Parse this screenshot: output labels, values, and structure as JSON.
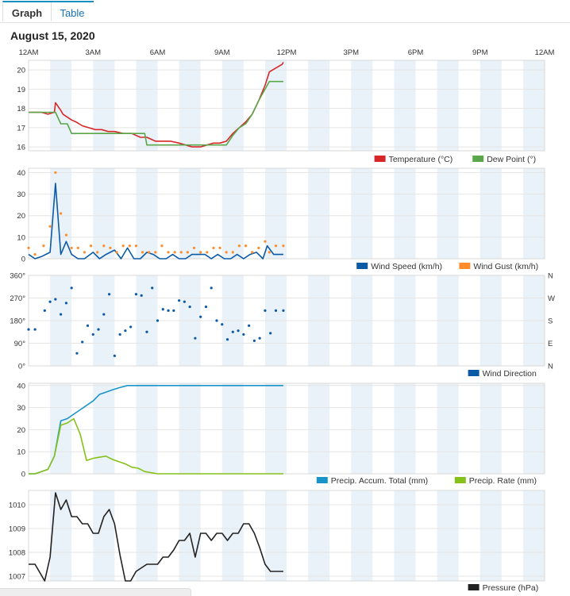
{
  "tabs": {
    "graph": "Graph",
    "table": "Table"
  },
  "page": {
    "date": "August 15, 2020"
  },
  "colors": {
    "temperature": "#d62728",
    "dew_point": "#5aa64a",
    "wind_speed": "#0b5aa6",
    "wind_gust": "#ff8c2a",
    "wind_direction": "#0b5aa6",
    "precip_total": "#1a94c8",
    "precip_rate": "#86c11a",
    "pressure": "#222222",
    "band": "#eaf2f9"
  },
  "chart_data": {
    "type": "line",
    "x_axis": {
      "unit": "hours since midnight",
      "range": [
        0,
        24
      ],
      "tick_hours": [
        0,
        3,
        6,
        9,
        12,
        15,
        18,
        21,
        24
      ],
      "tick_labels": [
        "12AM",
        "3AM",
        "6AM",
        "9AM",
        "12PM",
        "3PM",
        "6PM",
        "9PM",
        "12AM"
      ]
    },
    "panels": [
      {
        "id": "temp",
        "ylim": [
          15.8,
          20.5
        ],
        "yticks": [
          16,
          17,
          18,
          19,
          20
        ],
        "ytick_labels": [
          "16",
          "17",
          "18",
          "19",
          "20"
        ],
        "legend": [
          {
            "name": "Temperature (°C)",
            "color": "#d62728"
          },
          {
            "name": "Dew Point (°)",
            "color": "#5aa64a"
          }
        ],
        "series": [
          {
            "name": "Temperature (°C)",
            "style": "line",
            "color": "#d62728",
            "x": [
              0,
              0.6,
              0.9,
              1.2,
              1.25,
              1.5,
              1.6,
              2.0,
              2.2,
              2.5,
              2.8,
              3.1,
              3.4,
              3.7,
              4.0,
              4.4,
              4.8,
              5.2,
              5.5,
              5.9,
              6.3,
              6.6,
              7.0,
              7.3,
              7.6,
              8.0,
              8.3,
              8.6,
              8.9,
              9.2,
              9.5,
              9.8,
              10.1,
              10.4,
              10.7,
              11.0,
              11.2,
              11.5,
              11.8,
              11.85
            ],
            "y": [
              17.8,
              17.8,
              17.7,
              17.8,
              18.3,
              17.9,
              17.7,
              17.4,
              17.3,
              17.1,
              17.0,
              16.9,
              16.9,
              16.8,
              16.8,
              16.7,
              16.7,
              16.5,
              16.5,
              16.3,
              16.3,
              16.3,
              16.2,
              16.1,
              16.0,
              16.0,
              16.1,
              16.2,
              16.2,
              16.3,
              16.7,
              17.0,
              17.3,
              17.7,
              18.4,
              19.2,
              19.9,
              20.1,
              20.3,
              20.4
            ]
          },
          {
            "name": "Dew Point (°)",
            "style": "line",
            "color": "#5aa64a",
            "x": [
              0,
              1.2,
              1.25,
              1.5,
              1.8,
              2.0,
              3.0,
              4.0,
              5.0,
              5.4,
              5.5,
              6.5,
              7.5,
              8.0,
              9.0,
              9.2,
              9.5,
              9.8,
              10.1,
              10.4,
              10.7,
              11.0,
              11.2,
              11.85
            ],
            "y": [
              17.8,
              17.8,
              17.8,
              17.2,
              17.2,
              16.7,
              16.7,
              16.7,
              16.7,
              16.7,
              16.1,
              16.1,
              16.1,
              16.1,
              16.1,
              16.1,
              16.6,
              17.0,
              17.2,
              17.7,
              18.4,
              19.0,
              19.4,
              19.4
            ]
          }
        ]
      },
      {
        "id": "wind",
        "ylim": [
          0,
          42
        ],
        "yticks": [
          0,
          10,
          20,
          30,
          40
        ],
        "ytick_labels": [
          "0",
          "10",
          "20",
          "30",
          "40"
        ],
        "legend": [
          {
            "name": "Wind Speed (km/h)",
            "color": "#0b5aa6"
          },
          {
            "name": "Wind Gust (km/h)",
            "color": "#ff8c2a"
          }
        ],
        "series": [
          {
            "name": "Wind Speed (km/h)",
            "style": "line",
            "color": "#0b5aa6",
            "x": [
              0,
              0.3,
              0.6,
              1.0,
              1.25,
              1.5,
              1.75,
              2.0,
              2.3,
              2.6,
              3.0,
              3.3,
              3.6,
              4.0,
              4.3,
              4.6,
              4.9,
              5.2,
              5.5,
              5.8,
              6.1,
              6.4,
              6.7,
              7.0,
              7.3,
              7.6,
              7.9,
              8.2,
              8.5,
              8.8,
              9.1,
              9.4,
              9.7,
              10.0,
              10.3,
              10.6,
              10.9,
              11.1,
              11.4,
              11.85
            ],
            "y": [
              2,
              0,
              1,
              3,
              35,
              2,
              8,
              2,
              0,
              0,
              3,
              0,
              2,
              4,
              0,
              5,
              0,
              0,
              3,
              2,
              0,
              0,
              2,
              0,
              0,
              2,
              2,
              2,
              0,
              2,
              0,
              0,
              2,
              0,
              2,
              3,
              0,
              6,
              2,
              2
            ]
          },
          {
            "name": "Wind Gust (km/h)",
            "style": "points",
            "color": "#ff8c2a",
            "x": [
              0,
              0.3,
              0.7,
              1.0,
              1.25,
              1.5,
              1.75,
              2.0,
              2.3,
              2.6,
              2.9,
              3.2,
              3.5,
              3.8,
              4.1,
              4.4,
              4.7,
              5.0,
              5.3,
              5.6,
              5.9,
              6.2,
              6.5,
              6.8,
              7.1,
              7.4,
              7.7,
              8.0,
              8.3,
              8.6,
              8.9,
              9.2,
              9.5,
              9.8,
              10.1,
              10.4,
              10.7,
              11.0,
              11.2,
              11.5,
              11.85
            ],
            "y": [
              5,
              2,
              6,
              15,
              40,
              21,
              11,
              5,
              5,
              3,
              6,
              3,
              6,
              5,
              3,
              6,
              6,
              6,
              3,
              3,
              3,
              6,
              3,
              3,
              3,
              3,
              5,
              3,
              3,
              5,
              5,
              3,
              3,
              6,
              6,
              3,
              5,
              8,
              3,
              6,
              6
            ]
          }
        ]
      },
      {
        "id": "dir",
        "ylim": [
          0,
          360
        ],
        "yticks": [
          0,
          90,
          180,
          270,
          360
        ],
        "ytick_labels": [
          "0°",
          "90°",
          "180°",
          "270°",
          "360°"
        ],
        "right_labels": [
          "N",
          "E",
          "S",
          "W",
          "N"
        ],
        "legend": [
          {
            "name": "Wind Direction",
            "color": "#0b5aa6"
          }
        ],
        "series": [
          {
            "name": "Wind Direction",
            "style": "points",
            "color": "#0b5aa6",
            "x": [
              0,
              0.3,
              0.75,
              1.0,
              1.25,
              1.5,
              1.75,
              2.0,
              2.25,
              2.5,
              2.75,
              3.0,
              3.25,
              3.5,
              3.75,
              4.0,
              4.25,
              4.5,
              4.75,
              5.0,
              5.25,
              5.5,
              5.75,
              6.0,
              6.25,
              6.5,
              6.75,
              7.0,
              7.25,
              7.5,
              7.75,
              8.0,
              8.25,
              8.5,
              8.75,
              9.0,
              9.25,
              9.5,
              9.75,
              10.0,
              10.25,
              10.5,
              10.75,
              11.0,
              11.25,
              11.5,
              11.85
            ],
            "y": [
              145,
              145,
              220,
              255,
              265,
              205,
              250,
              310,
              50,
              95,
              160,
              125,
              145,
              205,
              285,
              40,
              125,
              140,
              155,
              285,
              280,
              135,
              310,
              180,
              225,
              220,
              220,
              260,
              255,
              235,
              110,
              195,
              235,
              310,
              180,
              165,
              105,
              135,
              140,
              125,
              160,
              100,
              110,
              220,
              130,
              220,
              220
            ]
          }
        ]
      },
      {
        "id": "precip",
        "ylim": [
          0,
          41
        ],
        "yticks": [
          0,
          10,
          20,
          30,
          40
        ],
        "ytick_labels": [
          "0",
          "10",
          "20",
          "30",
          "40"
        ],
        "legend": [
          {
            "name": "Precip. Accum. Total (mm)",
            "color": "#1a94c8"
          },
          {
            "name": "Precip. Rate (mm)",
            "color": "#86c11a"
          }
        ],
        "series": [
          {
            "name": "Precip. Accum. Total (mm)",
            "style": "line",
            "color": "#1a94c8",
            "x": [
              0,
              0.3,
              0.6,
              0.9,
              1.2,
              1.5,
              1.8,
              2.1,
              2.4,
              2.7,
              3.0,
              3.3,
              3.6,
              3.9,
              4.2,
              4.6,
              5.0,
              6.0,
              8.0,
              10.0,
              11.85
            ],
            "y": [
              0,
              0,
              1,
              2,
              8,
              24,
              25,
              27,
              29,
              31,
              33,
              36,
              37,
              38,
              39,
              40,
              40,
              40,
              40,
              40,
              40
            ]
          },
          {
            "name": "Precip. Rate (mm)",
            "style": "line",
            "color": "#86c11a",
            "x": [
              0,
              0.3,
              0.6,
              0.9,
              1.2,
              1.5,
              1.8,
              2.1,
              2.4,
              2.7,
              3.0,
              3.3,
              3.6,
              3.9,
              4.2,
              4.5,
              4.8,
              5.1,
              5.4,
              6.0,
              8.0,
              10.0,
              11.85
            ],
            "y": [
              0,
              0,
              1,
              2,
              8,
              22,
              23,
              25,
              18,
              6,
              7,
              7.5,
              8,
              6.5,
              5.5,
              4.5,
              3,
              2.5,
              1,
              0,
              0,
              0,
              0
            ]
          }
        ]
      },
      {
        "id": "pressure",
        "ylim": [
          1006.8,
          1010.6
        ],
        "yticks": [
          1007,
          1008,
          1009,
          1010
        ],
        "ytick_labels": [
          "1007",
          "1008",
          "1009",
          "1010"
        ],
        "legend": [
          {
            "name": "Pressure (hPa)",
            "color": "#222222"
          }
        ],
        "series": [
          {
            "name": "Pressure (hPa)",
            "style": "line",
            "color": "#222222",
            "x": [
              0,
              0.3,
              0.75,
              1.0,
              1.25,
              1.5,
              1.75,
              2.0,
              2.25,
              2.5,
              2.75,
              3.0,
              3.25,
              3.5,
              3.75,
              4.0,
              4.25,
              4.5,
              4.75,
              5.0,
              5.5,
              6.0,
              6.25,
              6.5,
              6.75,
              7.0,
              7.25,
              7.5,
              7.75,
              8.0,
              8.25,
              8.5,
              8.75,
              9.0,
              9.25,
              9.5,
              9.75,
              10.0,
              10.25,
              10.5,
              10.75,
              11.0,
              11.25,
              11.5,
              11.75,
              11.85
            ],
            "y": [
              1007.5,
              1007.5,
              1006.8,
              1007.8,
              1010.5,
              1009.8,
              1010.2,
              1009.5,
              1009.5,
              1009.2,
              1009.2,
              1008.8,
              1008.8,
              1009.5,
              1009.8,
              1009.2,
              1007.9,
              1006.8,
              1006.8,
              1007.2,
              1007.5,
              1007.5,
              1007.8,
              1007.8,
              1008.1,
              1008.5,
              1008.5,
              1008.8,
              1007.8,
              1008.8,
              1008.8,
              1008.5,
              1008.8,
              1008.8,
              1008.5,
              1008.8,
              1008.8,
              1009.2,
              1009.2,
              1008.8,
              1008.2,
              1007.5,
              1007.2,
              1007.2,
              1007.2,
              1007.2
            ]
          }
        ]
      }
    ]
  }
}
